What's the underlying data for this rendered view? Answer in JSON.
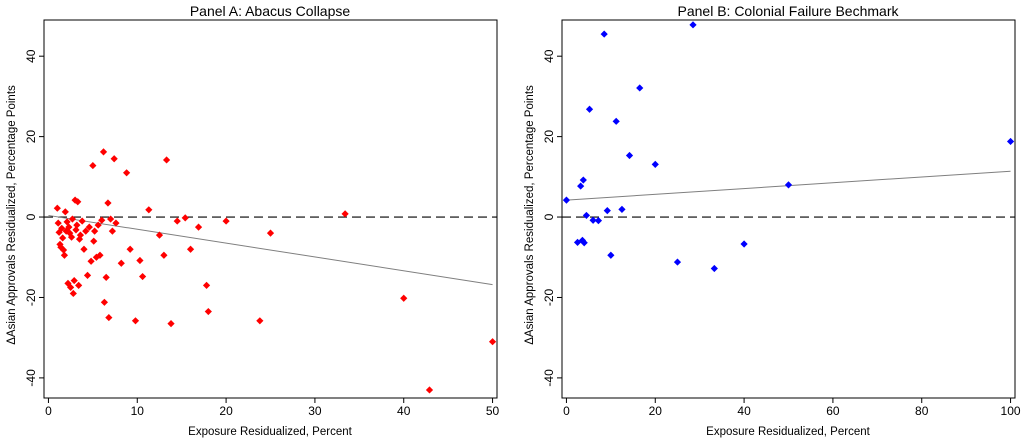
{
  "chart_data": [
    {
      "type": "scatter",
      "title": "Panel A: Abacus Collapse",
      "xlabel": "Exposure Residualized, Percent",
      "ylabel": "ΔAsian Approvals Residualized, Percentage Points",
      "xlim": [
        -0.5,
        50.5
      ],
      "ylim": [
        -45,
        49
      ],
      "xticks": [
        0,
        10,
        20,
        30,
        40,
        50
      ],
      "yticks": [
        -40,
        -20,
        0,
        20,
        40
      ],
      "marker_color": "#ff0000",
      "fit_line": {
        "x": [
          0,
          50
        ],
        "y": [
          0.4,
          -16.8
        ],
        "color": "#7f7f7f"
      },
      "reference_line": {
        "y": 0,
        "style": "dashed"
      },
      "points": [
        [
          1.0,
          2.2
        ],
        [
          1.1,
          -1.5
        ],
        [
          1.2,
          -3.8
        ],
        [
          1.3,
          -6.8
        ],
        [
          1.4,
          -7.5
        ],
        [
          1.5,
          -2.8
        ],
        [
          1.6,
          -5.2
        ],
        [
          1.7,
          -8.2
        ],
        [
          1.8,
          -9.5
        ],
        [
          1.9,
          1.3
        ],
        [
          2.0,
          -3.5
        ],
        [
          2.1,
          -1.2
        ],
        [
          2.2,
          -16.5
        ],
        [
          2.3,
          -2.5
        ],
        [
          2.4,
          -4.0
        ],
        [
          2.5,
          -17.5
        ],
        [
          2.6,
          -5.0
        ],
        [
          2.7,
          -0.5
        ],
        [
          2.8,
          -19.0
        ],
        [
          2.9,
          -15.8
        ],
        [
          3.0,
          4.2
        ],
        [
          3.1,
          -3.2
        ],
        [
          3.2,
          -2.0
        ],
        [
          3.3,
          3.8
        ],
        [
          3.4,
          -17.0
        ],
        [
          3.5,
          -5.5
        ],
        [
          3.6,
          -4.5
        ],
        [
          3.8,
          -1.0
        ],
        [
          4.0,
          -8.0
        ],
        [
          4.2,
          -3.5
        ],
        [
          4.4,
          -14.5
        ],
        [
          4.6,
          -2.5
        ],
        [
          4.8,
          -11.0
        ],
        [
          5.0,
          12.8
        ],
        [
          5.1,
          -6.0
        ],
        [
          5.2,
          -3.5
        ],
        [
          5.4,
          -10.0
        ],
        [
          5.6,
          -2.0
        ],
        [
          5.8,
          -9.5
        ],
        [
          6.0,
          -0.8
        ],
        [
          6.2,
          16.2
        ],
        [
          6.3,
          -21.2
        ],
        [
          6.5,
          -15.0
        ],
        [
          6.7,
          3.5
        ],
        [
          6.8,
          -25.0
        ],
        [
          7.0,
          -0.5
        ],
        [
          7.2,
          -3.5
        ],
        [
          7.4,
          14.5
        ],
        [
          7.6,
          -1.5
        ],
        [
          8.2,
          -11.5
        ],
        [
          8.8,
          11.0
        ],
        [
          9.2,
          -8.0
        ],
        [
          9.8,
          -25.8
        ],
        [
          10.3,
          -10.8
        ],
        [
          10.6,
          -14.8
        ],
        [
          11.3,
          1.8
        ],
        [
          12.5,
          -4.5
        ],
        [
          13.0,
          -9.5
        ],
        [
          13.3,
          14.2
        ],
        [
          13.8,
          -26.5
        ],
        [
          14.5,
          -1.0
        ],
        [
          15.4,
          -0.2
        ],
        [
          16.0,
          -8.0
        ],
        [
          16.9,
          -2.5
        ],
        [
          17.8,
          -17.0
        ],
        [
          18.0,
          -23.5
        ],
        [
          20.0,
          -1.0
        ],
        [
          23.8,
          -25.8
        ],
        [
          25.0,
          -4.0
        ],
        [
          33.4,
          0.8
        ],
        [
          40.0,
          -20.2
        ],
        [
          42.9,
          -43.0
        ],
        [
          50.0,
          -31.0
        ]
      ]
    },
    {
      "type": "scatter",
      "title": "Panel B: Colonial Failure Bechmark",
      "xlabel": "Exposure Residualized, Percent",
      "ylabel": "ΔAsian Approvals Residualized, Percentage Points",
      "xlim": [
        -1,
        101
      ],
      "ylim": [
        -45,
        49
      ],
      "xticks": [
        0,
        20,
        40,
        60,
        80,
        100
      ],
      "yticks": [
        -40,
        -20,
        0,
        20,
        40
      ],
      "marker_color": "#0000ff",
      "fit_line": {
        "x": [
          0,
          100
        ],
        "y": [
          4.2,
          11.4
        ],
        "color": "#7f7f7f"
      },
      "reference_line": {
        "y": 0,
        "style": "dashed"
      },
      "points": [
        [
          0.0,
          4.2
        ],
        [
          2.5,
          -6.3
        ],
        [
          3.2,
          7.7
        ],
        [
          3.6,
          -5.8
        ],
        [
          3.8,
          9.2
        ],
        [
          4.0,
          -6.4
        ],
        [
          4.5,
          0.4
        ],
        [
          5.2,
          26.8
        ],
        [
          6.0,
          -0.8
        ],
        [
          7.2,
          -0.9
        ],
        [
          8.5,
          45.5
        ],
        [
          9.2,
          1.6
        ],
        [
          10.0,
          -9.5
        ],
        [
          11.2,
          23.8
        ],
        [
          12.5,
          1.9
        ],
        [
          14.2,
          15.3
        ],
        [
          16.5,
          32.1
        ],
        [
          20.0,
          13.1
        ],
        [
          25.0,
          -11.2
        ],
        [
          28.5,
          47.8
        ],
        [
          33.3,
          -12.8
        ],
        [
          40.0,
          -6.7
        ],
        [
          50.0,
          8.0
        ],
        [
          100.0,
          18.8
        ]
      ]
    }
  ]
}
